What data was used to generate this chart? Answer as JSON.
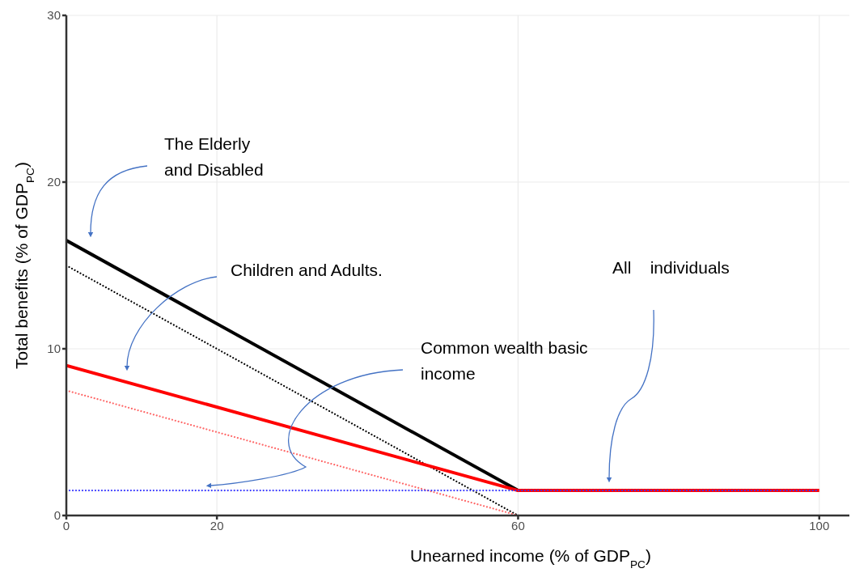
{
  "chart_data": {
    "type": "line",
    "xlabel": "Unearned income (% of GDP$_{PC}$)",
    "ylabel": "Total benefits (% of GDP$_{PC}$)",
    "xlim": [
      0,
      104
    ],
    "xticks": [
      0,
      20,
      60,
      100
    ],
    "ylim": [
      0,
      30
    ],
    "yticks": [
      0,
      10,
      20,
      30
    ],
    "grid": true,
    "marker": "none",
    "series": [
      {
        "color": "#000000",
        "line_style": "dotted",
        "x": [
          0,
          60,
          100
        ],
        "values": [
          15,
          0,
          0
        ]
      },
      {
        "color": "#ff6666",
        "line_style": "dotted",
        "x": [
          0,
          60
        ],
        "values": [
          7.5,
          0
        ]
      },
      {
        "color": "#000000",
        "line_style": "solid",
        "x": [
          0,
          60
        ],
        "values": [
          16.5,
          1.5
        ]
      },
      {
        "color": "#ff0000",
        "line_style": "solid",
        "x": [
          0,
          60,
          100
        ],
        "values": [
          9,
          1.5,
          1.5
        ]
      },
      {
        "color": "#3333ff",
        "line_style": "dotted",
        "x": [
          0,
          60,
          100
        ],
        "values": [
          1.5,
          1.5,
          1.5
        ]
      }
    ],
    "annotations": [
      "The Elderly\nand Disabled",
      "Children and Adults.",
      "Common wealth basic\nincome",
      "All    individuals"
    ]
  }
}
